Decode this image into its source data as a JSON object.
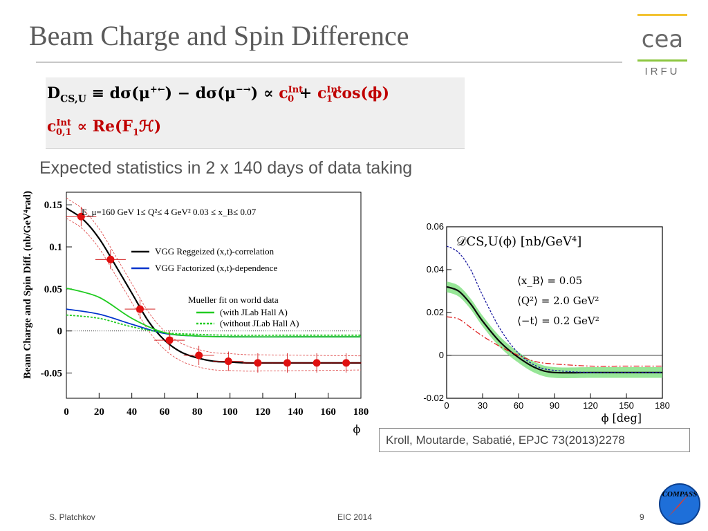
{
  "slide": {
    "title": "Beam Charge and Spin Difference",
    "subtitle": "Expected statistics in 2 x 140 days of data taking",
    "logo_text": "cea",
    "logo_sub": "IRFU",
    "citation": "Kroll, Moutarde, Sabatié, EPJC 73(2013)2278",
    "footer_left": "S. Platchkov",
    "footer_center": "EIC 2014",
    "page_number": "9",
    "compass_text": "COMPASS"
  },
  "formula": {
    "line1_lhs": "D",
    "line1_lhs_sub": "CS,U",
    "line1_mid": "≡ dσ(μ",
    "line1_sup1": "+←",
    "line1_mid2": ") − dσ(μ",
    "line1_sup2": "−→",
    "line1_mid3": ")  ∝",
    "c0": "c",
    "c0_sup": "Int",
    "c0_sub": "0",
    "plus": "+",
    "c1": "c",
    "c1_sup": "Int",
    "c1_sub": "1",
    "cos": "cos(ϕ)",
    "line2_c": "c",
    "line2_sup": "Int",
    "line2_sub": "0,1",
    "line2_rest": "∝ Re(F",
    "line2_f_sub": "1",
    "line2_end": "ℋ)",
    "color_red": "#c00000"
  },
  "chart_data": [
    {
      "type": "line",
      "ylabel": "Beam Charge and Spin Diff. (nb/GeV⁴rad)",
      "xlabel": "ϕ",
      "xlim": [
        0,
        180
      ],
      "ylim": [
        -0.08,
        0.165
      ],
      "x_ticks": [
        "0",
        "20",
        "40",
        "60",
        "80",
        "100",
        "120",
        "140",
        "160",
        "180"
      ],
      "y_ticks": [
        "0.15",
        "0.1",
        "0.05",
        "0",
        "-0.05"
      ],
      "annotation": "E_μ=160 GeV    1≤ Q²≤  4 GeV²     0.03 ≤ x_B≤ 0.07",
      "legend_title": "Mueller fit on world data",
      "series": [
        {
          "name": "VGG Reggeized (x,t)-correlation",
          "color": "#000000",
          "x": [
            0,
            10,
            20,
            30,
            40,
            50,
            60,
            70,
            80,
            90,
            100,
            110,
            120,
            140,
            160,
            180
          ],
          "values": [
            0.146,
            0.133,
            0.11,
            0.078,
            0.045,
            0.012,
            -0.011,
            -0.025,
            -0.032,
            -0.036,
            -0.037,
            -0.038,
            -0.038,
            -0.038,
            -0.038,
            -0.038
          ]
        },
        {
          "name": "VGG Factorized (x,t)-dependence",
          "color": "#0033cc",
          "x": [
            0,
            20,
            40,
            60,
            80,
            100,
            140,
            180
          ],
          "values": [
            0.026,
            0.02,
            0.008,
            -0.003,
            -0.006,
            -0.007,
            -0.007,
            -0.007
          ]
        },
        {
          "name": "(with JLab Hall A)",
          "color": "#22cc22",
          "x": [
            0,
            20,
            40,
            60,
            80,
            100,
            140,
            180
          ],
          "values": [
            0.051,
            0.04,
            0.015,
            -0.002,
            -0.006,
            -0.007,
            -0.007,
            -0.007
          ]
        },
        {
          "name": "(without JLab Hall A)",
          "color": "#22cc22",
          "dashed": true,
          "x": [
            0,
            20,
            40,
            60,
            80,
            100,
            140,
            180
          ],
          "values": [
            0.019,
            0.015,
            0.005,
            -0.002,
            -0.004,
            -0.005,
            -0.005,
            -0.005
          ]
        }
      ],
      "points": {
        "x": [
          9,
          27,
          45,
          63,
          81,
          99,
          117,
          135,
          153,
          171
        ],
        "values": [
          0.136,
          0.085,
          0.026,
          -0.011,
          -0.029,
          -0.036,
          -0.038,
          -0.038,
          -0.038,
          -0.038
        ]
      }
    },
    {
      "type": "line",
      "xlabel": "ϕ  [deg]",
      "xlim": [
        0,
        180
      ],
      "ylim": [
        -0.02,
        0.06
      ],
      "x_ticks": [
        "0",
        "30",
        "60",
        "90",
        "120",
        "150",
        "180"
      ],
      "y_ticks": [
        "0.06",
        "0.04",
        "0.02",
        "0",
        "-0.02"
      ],
      "title": "𝒟CS,U(ϕ)   [nb/GeV⁴]",
      "annotations": [
        "⟨x_B⟩   =   0.05",
        "⟨Q²⟩   =   2.0 GeV²",
        "⟨−t⟩   =   0.2 GeV²"
      ],
      "series": [
        {
          "color": "#0a0a0a",
          "band_color": "#7de07d",
          "x": [
            0,
            10,
            20,
            30,
            45,
            60,
            75,
            90,
            120,
            150,
            180
          ],
          "values": [
            0.032,
            0.03,
            0.024,
            0.016,
            0.006,
            -0.001,
            -0.006,
            -0.008,
            -0.008,
            -0.008,
            -0.008
          ]
        },
        {
          "color": "#1a1aa0",
          "dashed": true,
          "x": [
            0,
            10,
            20,
            30,
            45,
            60,
            75,
            90,
            120,
            150,
            180
          ],
          "values": [
            0.051,
            0.048,
            0.04,
            0.028,
            0.012,
            0.001,
            -0.005,
            -0.007,
            -0.008,
            -0.008,
            -0.008
          ]
        },
        {
          "color": "#e02020",
          "dashdot": true,
          "x": [
            0,
            10,
            20,
            30,
            45,
            60,
            75,
            90,
            120,
            150,
            180
          ],
          "values": [
            0.018,
            0.017,
            0.013,
            0.009,
            0.004,
            0.0,
            -0.003,
            -0.004,
            -0.005,
            -0.005,
            -0.005
          ]
        }
      ]
    }
  ]
}
